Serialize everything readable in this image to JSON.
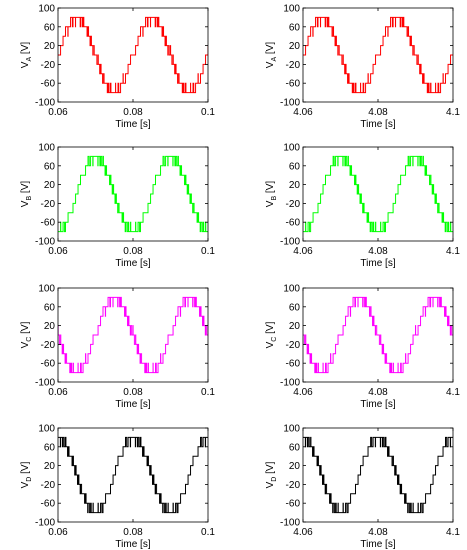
{
  "chart_data": [
    {
      "type": "line",
      "panel": "VA-early",
      "ylabel_main": "V",
      "ylabel_sub": "A",
      "ylabel_unit": " [V]",
      "xlabel": "Time [s]",
      "xlim": [
        0.06,
        0.1
      ],
      "ylim": [
        -100,
        100
      ],
      "xticks": [
        0.06,
        0.08,
        0.1
      ],
      "xtick_labels": [
        "0.06",
        "0.08",
        "0.1"
      ],
      "yticks": [
        -100,
        -60,
        -20,
        20,
        60,
        100
      ],
      "ytick_labels": [
        "-100",
        "-60",
        "-20",
        "20",
        "60",
        "100"
      ],
      "series": [
        {
          "color": "#ff0000",
          "waveform": "multilevel stepped PWM sine",
          "fundamental_hz": 50,
          "peak": 80,
          "levels": [
            -80,
            -60,
            -40,
            -20,
            0,
            20,
            40,
            60,
            80
          ],
          "phase_deg": 0
        }
      ]
    },
    {
      "type": "line",
      "panel": "VA-late",
      "ylabel_main": "V",
      "ylabel_sub": "A",
      "ylabel_unit": " [V]",
      "xlabel": "Time [s]",
      "xlim": [
        4.06,
        4.1
      ],
      "ylim": [
        -100,
        100
      ],
      "xticks": [
        4.06,
        4.08,
        4.1
      ],
      "xtick_labels": [
        "4.06",
        "4.08",
        "4.1"
      ],
      "yticks": [
        -100,
        -60,
        -20,
        20,
        60,
        100
      ],
      "ytick_labels": [
        "-100",
        "-60",
        "-20",
        "20",
        "60",
        "100"
      ],
      "series": [
        {
          "color": "#ff0000",
          "waveform": "multilevel stepped PWM sine",
          "fundamental_hz": 50,
          "peak": 80,
          "levels": [
            -80,
            -60,
            -40,
            -20,
            0,
            20,
            40,
            60,
            80
          ],
          "phase_deg": 0
        }
      ]
    },
    {
      "type": "line",
      "panel": "VB-early",
      "ylabel_main": "V",
      "ylabel_sub": "B",
      "ylabel_unit": " [V]",
      "xlabel": "Time [s]",
      "xlim": [
        0.06,
        0.1
      ],
      "ylim": [
        -100,
        100
      ],
      "xticks": [
        0.06,
        0.08,
        0.1
      ],
      "xtick_labels": [
        "0.06",
        "0.08",
        "0.1"
      ],
      "yticks": [
        -100,
        -60,
        -20,
        20,
        60,
        100
      ],
      "ytick_labels": [
        "-100",
        "-60",
        "-20",
        "20",
        "60",
        "100"
      ],
      "series": [
        {
          "color": "#00ff00",
          "waveform": "multilevel stepped PWM sine",
          "fundamental_hz": 50,
          "peak": 80,
          "levels": [
            -80,
            -60,
            -40,
            -20,
            0,
            20,
            40,
            60,
            80
          ],
          "phase_deg": -90
        }
      ]
    },
    {
      "type": "line",
      "panel": "VB-late",
      "ylabel_main": "V",
      "ylabel_sub": "B",
      "ylabel_unit": " [V]",
      "xlabel": "Time [s]",
      "xlim": [
        4.06,
        4.1
      ],
      "ylim": [
        -100,
        100
      ],
      "xticks": [
        4.06,
        4.08,
        4.1
      ],
      "xtick_labels": [
        "4.06",
        "4.08",
        "4.1"
      ],
      "yticks": [
        -100,
        -60,
        -20,
        20,
        60,
        100
      ],
      "ytick_labels": [
        "-100",
        "-60",
        "-20",
        "20",
        "60",
        "100"
      ],
      "series": [
        {
          "color": "#00ff00",
          "waveform": "multilevel stepped PWM sine",
          "fundamental_hz": 50,
          "peak": 80,
          "levels": [
            -80,
            -60,
            -40,
            -20,
            0,
            20,
            40,
            60,
            80
          ],
          "phase_deg": -90
        }
      ]
    },
    {
      "type": "line",
      "panel": "VC-early",
      "ylabel_main": "V",
      "ylabel_sub": "C",
      "ylabel_unit": " [V]",
      "xlabel": "Time [s]",
      "xlim": [
        0.06,
        0.1
      ],
      "ylim": [
        -100,
        100
      ],
      "xticks": [
        0.06,
        0.08,
        0.1
      ],
      "xtick_labels": [
        "0.06",
        "0.08",
        "0.1"
      ],
      "yticks": [
        -100,
        -60,
        -20,
        20,
        60,
        100
      ],
      "ytick_labels": [
        "-100",
        "-60",
        "-20",
        "20",
        "60",
        "100"
      ],
      "series": [
        {
          "color": "#ff00ff",
          "waveform": "multilevel stepped PWM sine",
          "fundamental_hz": 50,
          "peak": 80,
          "levels": [
            -80,
            -60,
            -40,
            -20,
            0,
            20,
            40,
            60,
            80
          ],
          "phase_deg": 180
        }
      ]
    },
    {
      "type": "line",
      "panel": "VC-late",
      "ylabel_main": "V",
      "ylabel_sub": "C",
      "ylabel_unit": " [V]",
      "xlabel": "Time [s]",
      "xlim": [
        4.06,
        4.1
      ],
      "ylim": [
        -100,
        100
      ],
      "xticks": [
        4.06,
        4.08,
        4.1
      ],
      "xtick_labels": [
        "4.06",
        "4.08",
        "4.1"
      ],
      "yticks": [
        -100,
        -60,
        -20,
        20,
        60,
        100
      ],
      "ytick_labels": [
        "-100",
        "-60",
        "-20",
        "20",
        "60",
        "100"
      ],
      "series": [
        {
          "color": "#ff00ff",
          "waveform": "multilevel stepped PWM sine",
          "fundamental_hz": 50,
          "peak": 80,
          "levels": [
            -80,
            -60,
            -40,
            -20,
            0,
            20,
            40,
            60,
            80
          ],
          "phase_deg": 180
        }
      ]
    },
    {
      "type": "line",
      "panel": "VD-early",
      "ylabel_main": "V",
      "ylabel_sub": "D",
      "ylabel_unit": " [V]",
      "xlabel": "Time [s]",
      "xlim": [
        0.06,
        0.1
      ],
      "ylim": [
        -100,
        100
      ],
      "xticks": [
        0.06,
        0.08,
        0.1
      ],
      "xtick_labels": [
        "0.06",
        "0.08",
        "0.1"
      ],
      "yticks": [
        -100,
        -60,
        -20,
        20,
        60,
        100
      ],
      "ytick_labels": [
        "-100",
        "-60",
        "-20",
        "20",
        "60",
        "100"
      ],
      "series": [
        {
          "color": "#000000",
          "waveform": "multilevel stepped PWM sine",
          "fundamental_hz": 50,
          "peak": 80,
          "levels": [
            -80,
            -60,
            -40,
            -20,
            0,
            20,
            40,
            60,
            80
          ],
          "phase_deg": 90
        }
      ]
    },
    {
      "type": "line",
      "panel": "VD-late",
      "ylabel_main": "V",
      "ylabel_sub": "D",
      "ylabel_unit": " [V]",
      "xlabel": "Time [s]",
      "xlim": [
        4.06,
        4.1
      ],
      "ylim": [
        -100,
        100
      ],
      "xticks": [
        4.06,
        4.08,
        4.1
      ],
      "xtick_labels": [
        "4.06",
        "4.08",
        "4.1"
      ],
      "yticks": [
        -100,
        -60,
        -20,
        20,
        60,
        100
      ],
      "ytick_labels": [
        "-100",
        "-60",
        "-20",
        "20",
        "60",
        "100"
      ],
      "series": [
        {
          "color": "#000000",
          "waveform": "multilevel stepped PWM sine",
          "fundamental_hz": 50,
          "peak": 80,
          "levels": [
            -80,
            -60,
            -40,
            -20,
            0,
            20,
            40,
            60,
            80
          ],
          "phase_deg": 90
        }
      ]
    }
  ]
}
